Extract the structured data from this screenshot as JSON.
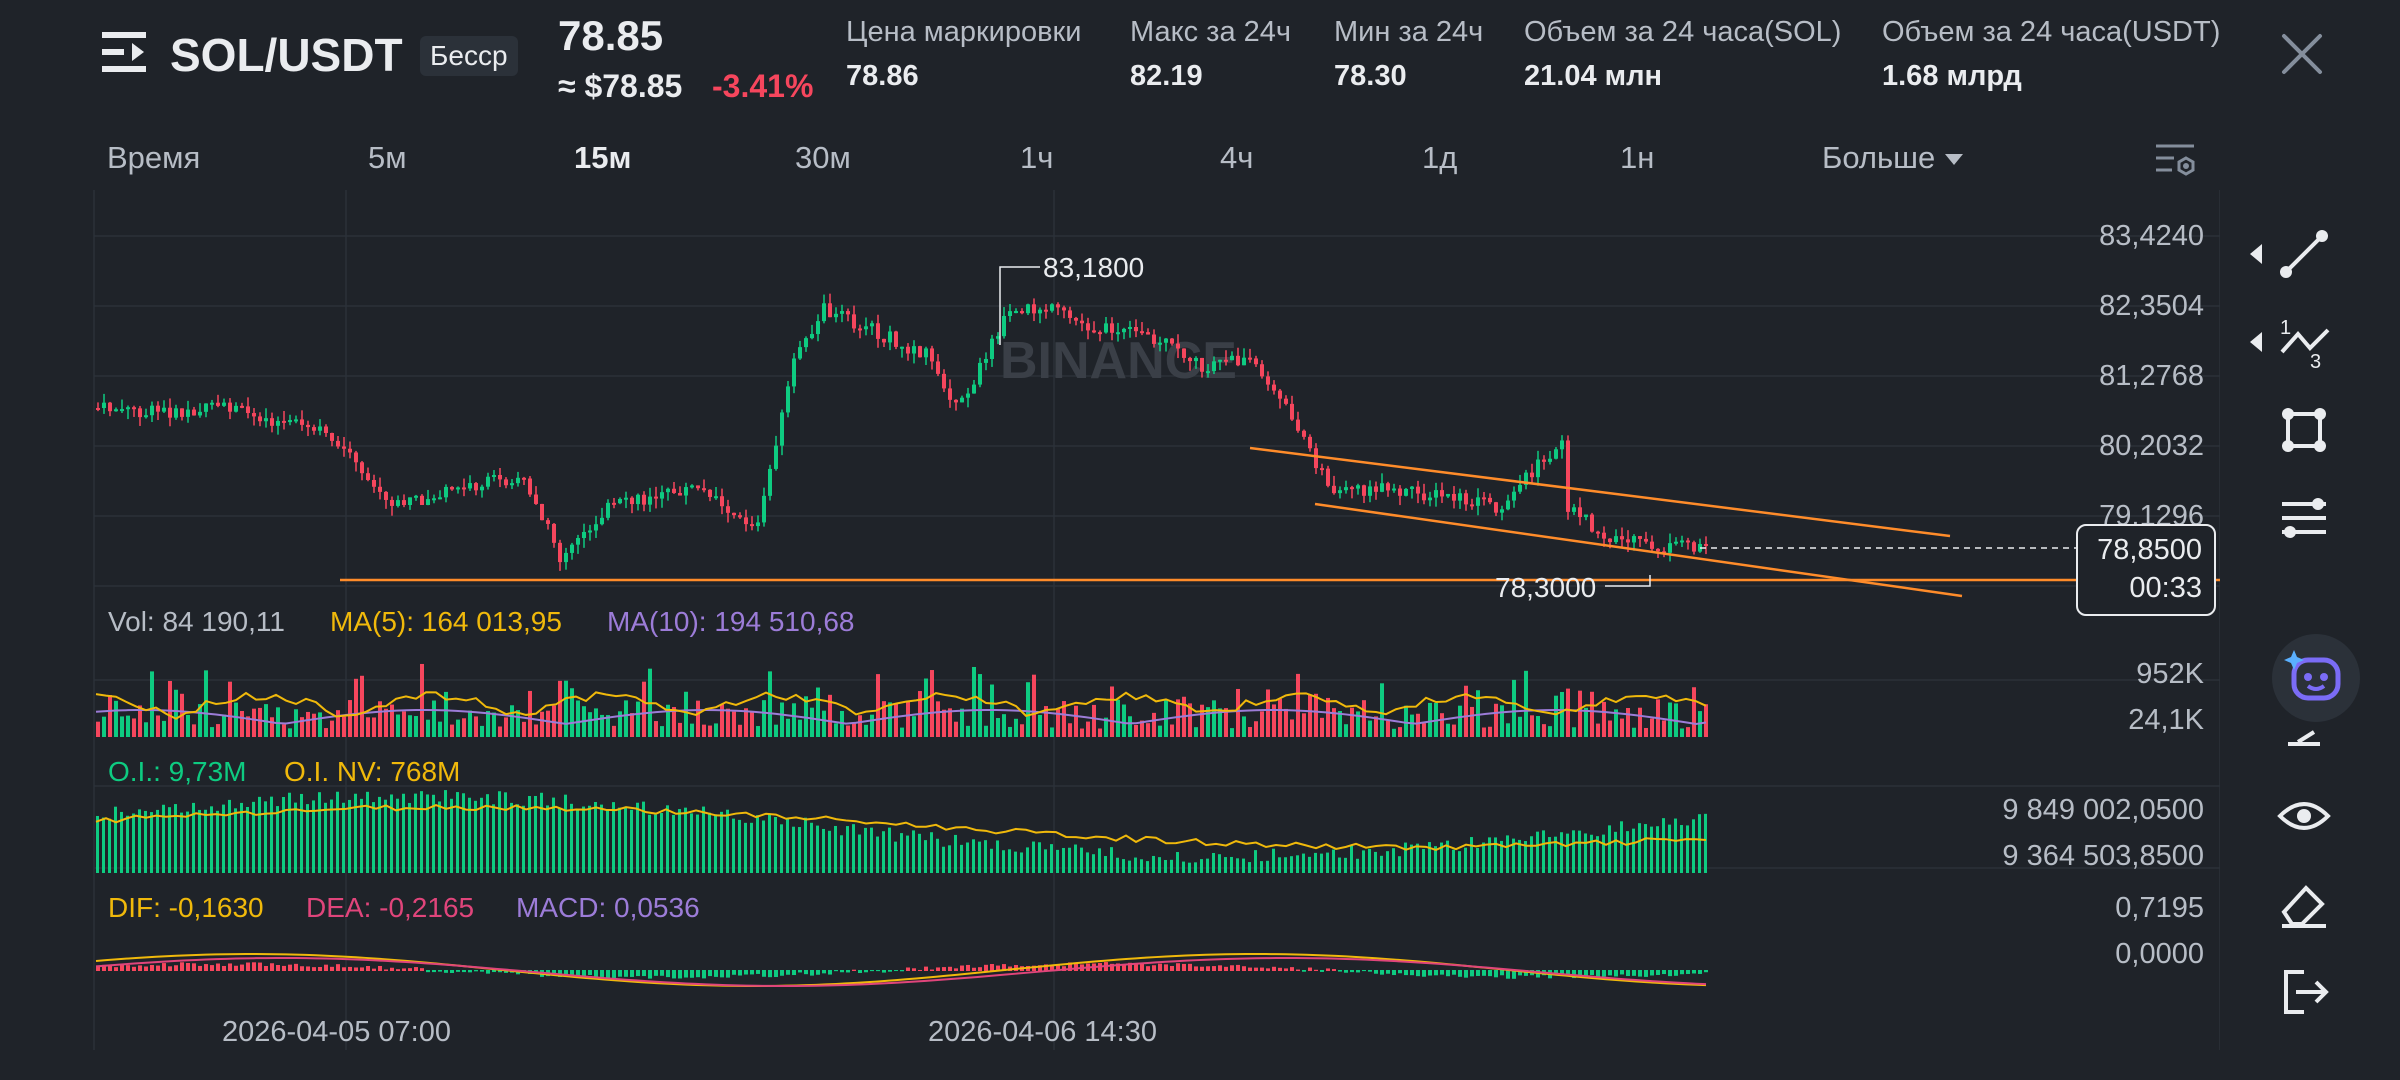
{
  "header": {
    "pair": "SOL/USDT",
    "badge": "Бесср",
    "last_price": "78.85",
    "usd_price": "≈ $78.85",
    "change": "-3.41%",
    "stats": [
      {
        "label": "Цена маркировки",
        "value": "78.86"
      },
      {
        "label": "Макс за 24ч",
        "value": "82.19"
      },
      {
        "label": "Мин за 24ч",
        "value": "78.30"
      },
      {
        "label": "Объем за 24 часа(SOL)",
        "value": "21.04 млн"
      },
      {
        "label": "Объем за 24 часа(USDT)",
        "value": "1.68 млрд"
      }
    ]
  },
  "intervals": {
    "items": [
      "Время",
      "5м",
      "15м",
      "30м",
      "1ч",
      "4ч",
      "1д",
      "1н"
    ],
    "active": "15м",
    "more": "Больше"
  },
  "price_axis": [
    "83,4240",
    "82,3504",
    "81,2768",
    "80,2032",
    "79,1296",
    "78,8500"
  ],
  "current_price": {
    "price": "78,8500",
    "countdown": "00:33"
  },
  "annotations": {
    "high": "83,1800",
    "low": "78,3000"
  },
  "watermark": "BINANCE",
  "volume": {
    "vol_label": "Vol: 84 190,11",
    "ma5_label": "MA(5): 164 013,95",
    "ma10_label": "MA(10): 194 510,68",
    "axis": [
      "952K",
      "24,1K"
    ]
  },
  "open_interest": {
    "oi_label": "O.I.: 9,73M",
    "oinv_label": "O.I. NV: 768M",
    "axis": [
      "9 849 002,0500",
      "9 364 503,8500"
    ]
  },
  "macd": {
    "dif_label": "DIF: -0,1630",
    "dea_label": "DEA: -0,2165",
    "macd_label": "MACD: 0,0536",
    "axis": [
      "0,7195",
      "0,0000"
    ]
  },
  "dates": [
    "2026-04-05 07:00",
    "2026-04-06 14:30"
  ],
  "colors": {
    "up": "#0ecb81",
    "down": "#f6465d",
    "ma5": "#f0b90b",
    "ma10": "#9c7cd8",
    "trendline": "#ff8c2a",
    "background": "#1f2329"
  },
  "toolbar_icons": [
    "trend-line-icon",
    "fibonacci-icon",
    "rectangle-icon",
    "parallel-lines-icon",
    "ai-assistant-icon",
    "measure-icon",
    "eye-icon",
    "eraser-icon",
    "exit-icon"
  ]
}
